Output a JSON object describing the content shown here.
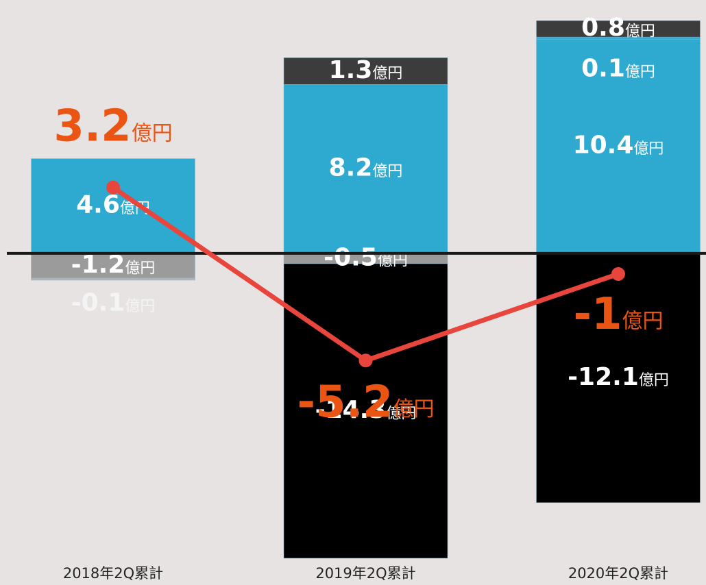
{
  "chart_data": {
    "type": "bar",
    "stacked": true,
    "categories": [
      "2018年2Q累計",
      "2019年2Q累計",
      "2020年2Q累計"
    ],
    "unit": "億円",
    "ylim": [
      -15.3,
      12.3
    ],
    "series": [
      {
        "color": "#2ea9d0",
        "label_color": "#ffffff",
        "values": [
          4.6,
          8.2,
          10.4
        ]
      },
      {
        "color": "#2ea9d0",
        "label_color": "#ffffff",
        "values": [
          null,
          null,
          0.1
        ]
      },
      {
        "color": "#3c3c3c",
        "label_color": "#ffffff",
        "values": [
          null,
          1.3,
          0.8
        ]
      },
      {
        "color": "#9b9b9b",
        "label_color": "#ffffff",
        "values": [
          -1.2,
          -0.5,
          null
        ]
      },
      {
        "color": "#b5b5b5",
        "label_color": "#f4f4f4",
        "values": [
          -0.1,
          null,
          null
        ]
      },
      {
        "color": "#000000",
        "label_color": "#ffffff",
        "values": [
          null,
          -14.3,
          -12.1
        ]
      }
    ],
    "line": {
      "color": "#e8453c",
      "label_color": "#ea5514",
      "values": [
        3.2,
        -5.2,
        -1.0
      ]
    }
  }
}
